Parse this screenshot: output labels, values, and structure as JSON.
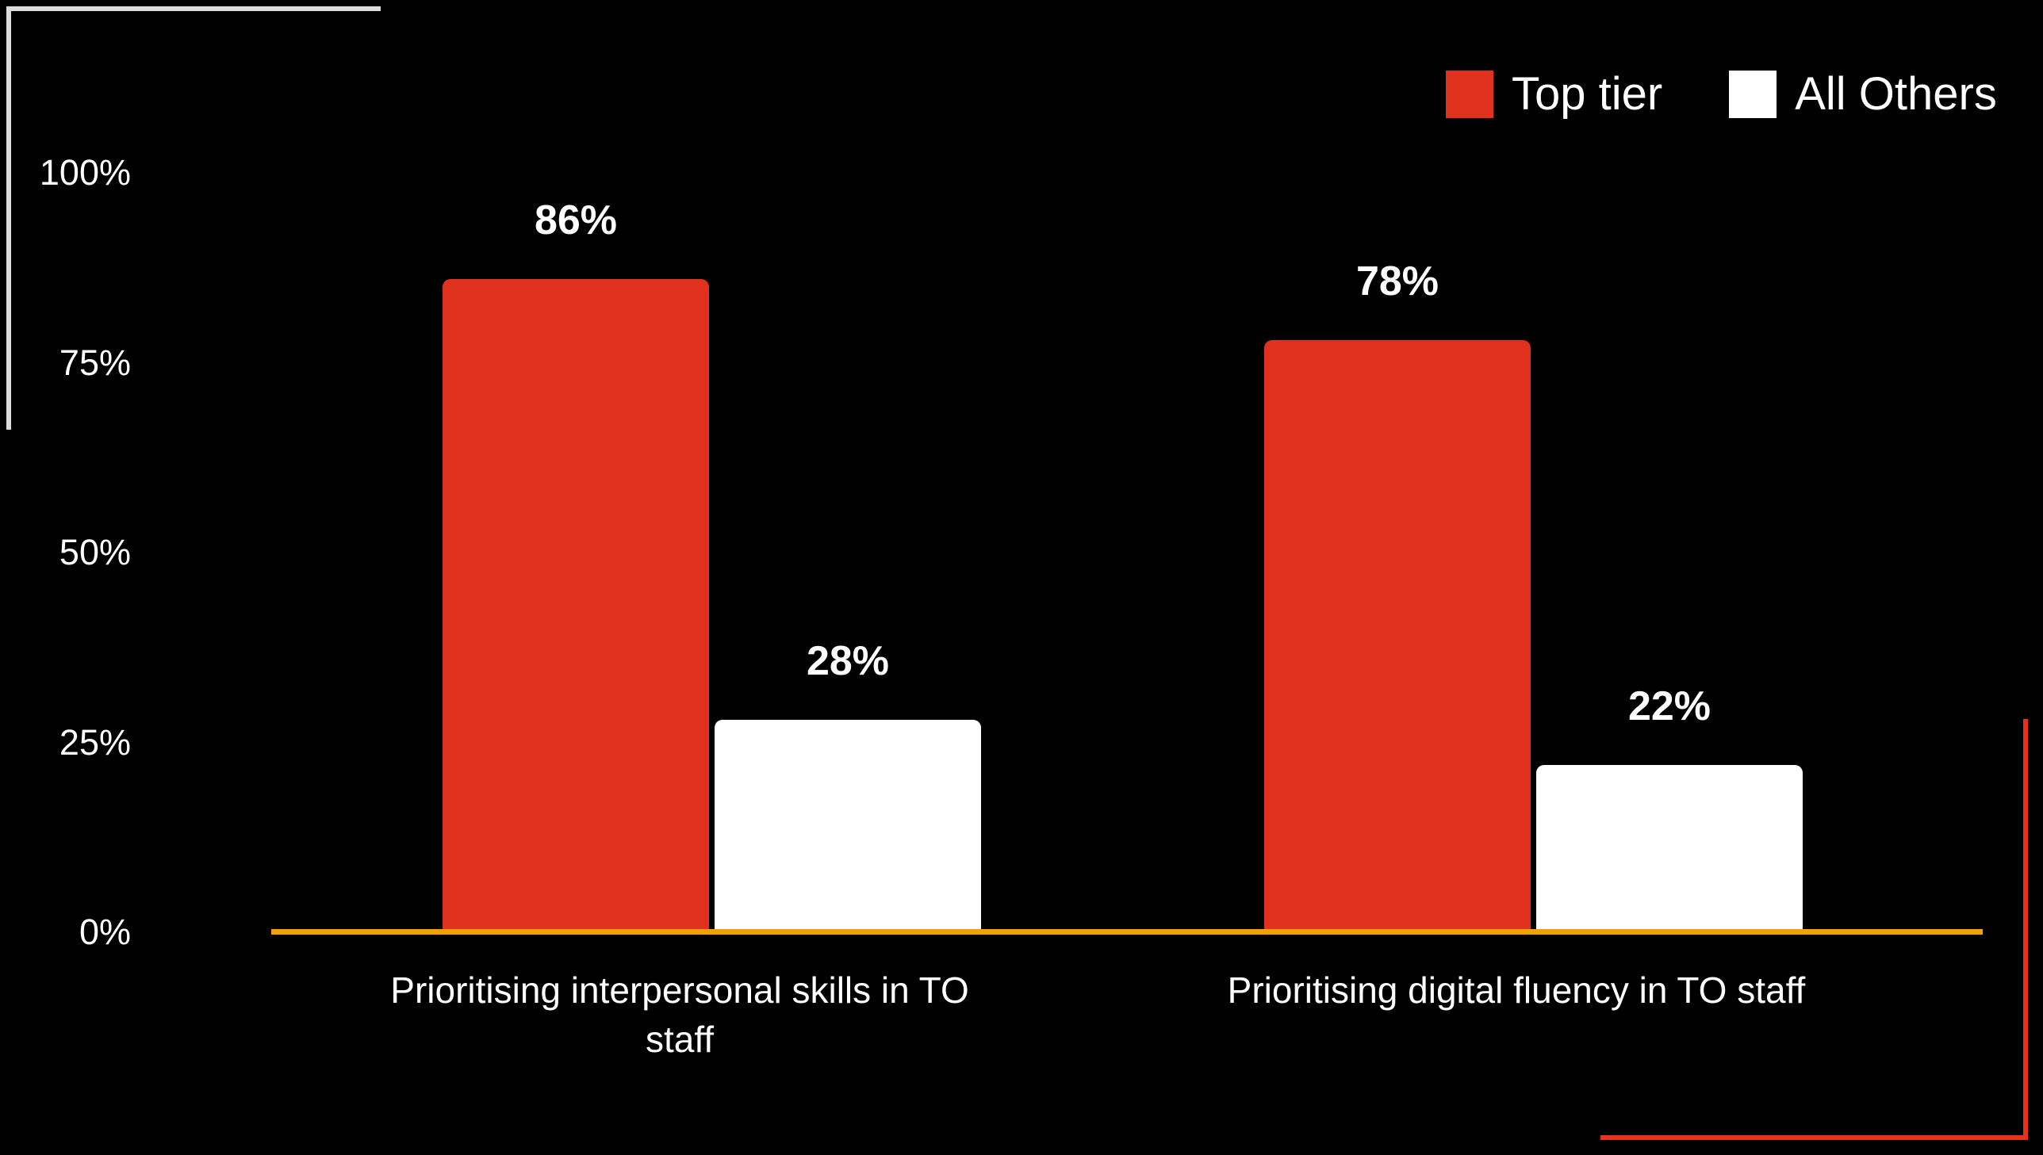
{
  "background_color": "#000000",
  "colors": {
    "bar_red": "#E0301E",
    "bar_white": "#FFFFFF",
    "axis_orange": "#F2A104",
    "corner_line_white": "#DCDCDC",
    "corner_line_red": "#E8321E",
    "text": "#FFFFFF"
  },
  "legend": {
    "position": "top-right",
    "items": [
      {
        "label": "Top tier",
        "color": "#E0301E"
      },
      {
        "label": "All Others",
        "color": "#FFFFFF"
      }
    ]
  },
  "chart_data": {
    "type": "bar",
    "title": "",
    "xlabel": "",
    "ylabel": "",
    "categories": [
      "Prioritising interpersonal skills in TO staff",
      "Prioritising digital fluency in TO staff"
    ],
    "series": [
      {
        "name": "Top tier",
        "color": "#E0301E",
        "values": [
          86,
          78
        ]
      },
      {
        "name": "All Others",
        "color": "#FFFFFF",
        "values": [
          28,
          22
        ]
      }
    ],
    "value_labels": [
      [
        "86%",
        "78%"
      ],
      [
        "28%",
        "22%"
      ]
    ],
    "y_ticks": [
      {
        "label": "100%",
        "value": 100
      },
      {
        "label": "75%",
        "value": 75
      },
      {
        "label": "50%",
        "value": 50
      },
      {
        "label": "25%",
        "value": 25
      },
      {
        "label": "0%",
        "value": 0
      }
    ],
    "ylim": [
      0,
      100
    ],
    "unit": "%",
    "grid": false,
    "legend_position": "top-right"
  }
}
